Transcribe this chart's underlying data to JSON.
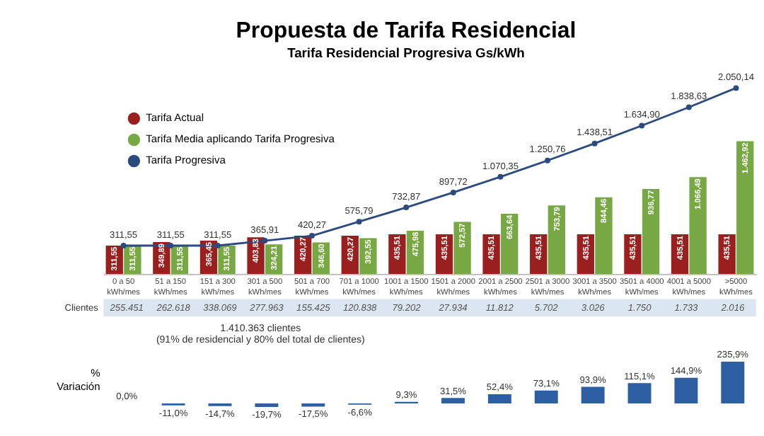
{
  "chart_data": [
    {
      "type": "bar",
      "title": "Propuesta de Tarifa Residencial",
      "subtitle": "Tarifa Residencial Progresiva Gs/kWh",
      "categories": [
        "0 a 50 kWh/mes",
        "51 a 150 kWh/mes",
        "151 a 300 kWh/mes",
        "301 a 500 kWh/mes",
        "501 a 700 kWh/mes",
        "701 a 1000 kWh/mes",
        "1001 a 1500 kWh/mes",
        "1501 a 2000 kWh/mes",
        "2001 a 2500 kWh/mes",
        "2501 a 3000 kWh/mes",
        "3001 a 3500 kWh/mes",
        "3501 a 4000 kWh/mes",
        "4001 a 5000 kWh/mes",
        ">5000 kWh/mes"
      ],
      "series": [
        {
          "name": "Tarifa Actual",
          "color": "#9a1f1f",
          "values": [
            311.55,
            349.89,
            365.45,
            403.83,
            420.27,
            420.27,
            435.51,
            435.51,
            435.51,
            435.51,
            435.51,
            435.51,
            435.51,
            435.51
          ],
          "value_labels": [
            "311,55",
            "349,89",
            "365,45",
            "403,83",
            "420,27",
            "420,27",
            "435,51",
            "435,51",
            "435,51",
            "435,51",
            "435,51",
            "435,51",
            "435,51",
            "435,51"
          ]
        },
        {
          "name": "Tarifa Media aplicando Tarifa Progresiva",
          "color": "#78a843",
          "values": [
            311.55,
            311.55,
            311.55,
            324.21,
            346.6,
            392.55,
            475.98,
            572.57,
            663.64,
            753.79,
            844.46,
            936.77,
            1066.49,
            1462.92
          ],
          "value_labels": [
            "311,55",
            "311,55",
            "311,55",
            "324,21",
            "346,60",
            "392,55",
            "475,98",
            "572,57",
            "663,64",
            "753,79",
            "844,46",
            "936,77",
            "1.066,49",
            "1.462,92"
          ]
        },
        {
          "name": "Tarifa Progresiva",
          "type": "line",
          "color": "#2b4a80",
          "marker": "circle",
          "line_style": "solid",
          "values": [
            311.55,
            311.55,
            311.55,
            365.91,
            420.27,
            575.79,
            732.87,
            897.72,
            1070.35,
            1250.76,
            1438.51,
            1634.9,
            1838.63,
            2050.14
          ],
          "value_labels": [
            "311,55",
            "311,55",
            "311,55",
            "365,91",
            "420,27",
            "575,79",
            "732,87",
            "897,72",
            "1.070,35",
            "1.250,76",
            "1.438,51",
            "1.634,90",
            "1.838,63",
            "2.050,14"
          ]
        }
      ],
      "tick_labels": "x",
      "legend": "top left",
      "grid": false,
      "annotations": [
        "Clientes",
        "255.451",
        "262.618",
        "338.069",
        "277.963",
        "155.425",
        "120.838",
        "79.202",
        "27.934",
        "11.812",
        "5.702",
        "3.026",
        "1.750",
        "1.733",
        "2.016",
        "1.410.363 clientes",
        "(91% de residencial y 80% del total de clientes)"
      ]
    },
    {
      "type": "bar",
      "ylabel": "% Variación",
      "categories": [
        null,
        null,
        null,
        null,
        null,
        null,
        null,
        null,
        null,
        null,
        null,
        null,
        null,
        null
      ],
      "values": [
        0.0,
        -11.0,
        -14.7,
        -19.7,
        -17.5,
        -6.6,
        9.3,
        31.5,
        52.4,
        73.1,
        93.9,
        115.1,
        144.9,
        235.9
      ],
      "value_labels": [
        "0,0%",
        "-11,0%",
        "-14,7%",
        "-19,7%",
        "-17,5%",
        "-6,6%",
        "9,3%",
        "31,5%",
        "52,4%",
        "73,1%",
        "93,9%",
        "115,1%",
        "144,9%",
        "235,9%"
      ],
      "color": "#2e5fa3",
      "ylim": [
        -25,
        245
      ],
      "tick_labels": false
    }
  ]
}
